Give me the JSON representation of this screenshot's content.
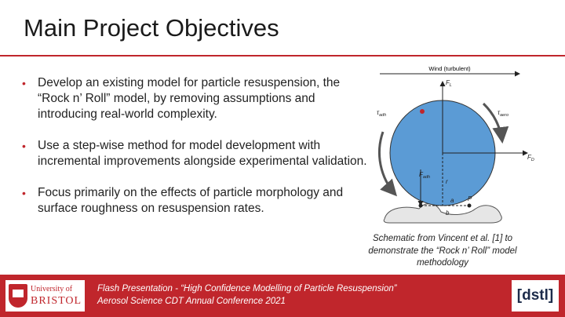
{
  "slide": {
    "title": "Main Project Objectives",
    "bullets": [
      "Develop an existing model for particle resuspension, the “Rock n’ Roll” model, by removing assumptions and introducing real-world complexity.",
      "Use a step-wise method for model development with incremental improvements alongside experimental validation.",
      "Focus primarily on the effects of particle morphology and surface roughness on resuspension rates."
    ],
    "bullet_glyph": "•"
  },
  "diagram": {
    "wind_label": "Wind (turbulent)",
    "labels": {
      "fl": "F",
      "fl_sub": "L",
      "fd": "F",
      "fd_sub": "D",
      "fadh": "F",
      "fadh_sub": "adh",
      "tau_adh": "τ",
      "tau_adh_sub": "adh",
      "tau_aero": "τ",
      "tau_aero_sub": "aero",
      "r": "r",
      "a": "a",
      "p": "P",
      "b": "b"
    },
    "colors": {
      "particle": "#5b9bd5",
      "accent": "#c0262c"
    },
    "caption": [
      "Schematic from Vincent et al. [1] to",
      "demonstrate the “Rock n’ Roll” model",
      "methodology"
    ]
  },
  "footer": {
    "line1": "Flash Presentation - “High Confidence Modelling of Particle Resuspension”",
    "line2": "Aerosol Science CDT Annual Conference 2021",
    "logo_left_line1": "University of",
    "logo_left_line2": "BRISTOL",
    "logo_right": "[dstl]"
  }
}
